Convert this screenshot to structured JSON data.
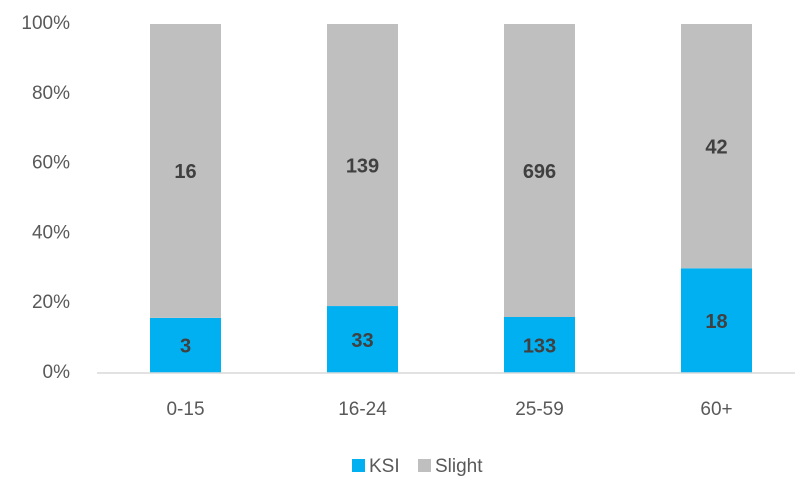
{
  "chart_data": {
    "type": "bar",
    "stacking": "percent",
    "categories": [
      "0-15",
      "16-24",
      "25-59",
      "60+"
    ],
    "series": [
      {
        "name": "KSI",
        "color": "#00b0f0",
        "values": [
          3,
          33,
          133,
          18
        ]
      },
      {
        "name": "Slight",
        "color": "#bfbfbf",
        "values": [
          16,
          139,
          696,
          42
        ]
      }
    ],
    "ylim": [
      0,
      100
    ],
    "yticks": [
      {
        "value": 0,
        "label": "0%"
      },
      {
        "value": 20,
        "label": "20%"
      },
      {
        "value": 40,
        "label": "40%"
      },
      {
        "value": 60,
        "label": "60%"
      },
      {
        "value": 80,
        "label": "80%"
      },
      {
        "value": 100,
        "label": "100%"
      }
    ],
    "grid": false,
    "legend": "bottom"
  }
}
